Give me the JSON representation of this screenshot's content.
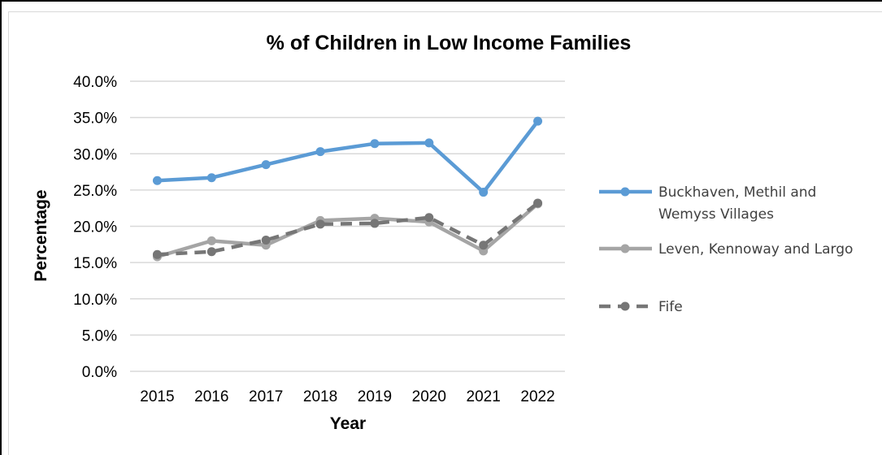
{
  "chart_data": {
    "type": "line",
    "title": "% of Children in Low Income Families",
    "xlabel": "Year",
    "ylabel": "Percentage",
    "categories": [
      "2015",
      "2016",
      "2017",
      "2018",
      "2019",
      "2020",
      "2021",
      "2022"
    ],
    "yticks": [
      "0.0%",
      "5.0%",
      "10.0%",
      "15.0%",
      "20.0%",
      "25.0%",
      "30.0%",
      "35.0%",
      "40.0%"
    ],
    "ylim": [
      0,
      40
    ],
    "grid": "horizontal",
    "legend": "right",
    "series": [
      {
        "name": "Buckhaven, Methil and Wemyss Villages",
        "name_lines": [
          "Buckhaven, Methil and",
          "Wemyss Villages"
        ],
        "values": [
          26.3,
          26.7,
          28.5,
          30.3,
          31.4,
          31.5,
          24.7,
          34.5
        ],
        "color": "#5b9bd5",
        "dash": "solid"
      },
      {
        "name": "Leven, Kennoway and Largo",
        "name_lines": [
          "Leven, Kennoway and Largo"
        ],
        "values": [
          15.8,
          18.0,
          17.4,
          20.8,
          21.1,
          20.6,
          16.6,
          23.1
        ],
        "color": "#a5a5a5",
        "dash": "solid"
      },
      {
        "name": "Fife",
        "name_lines": [
          "Fife"
        ],
        "values": [
          16.1,
          16.5,
          18.1,
          20.3,
          20.4,
          21.2,
          17.4,
          23.2
        ],
        "color": "#767676",
        "dash": "dashed"
      }
    ]
  }
}
